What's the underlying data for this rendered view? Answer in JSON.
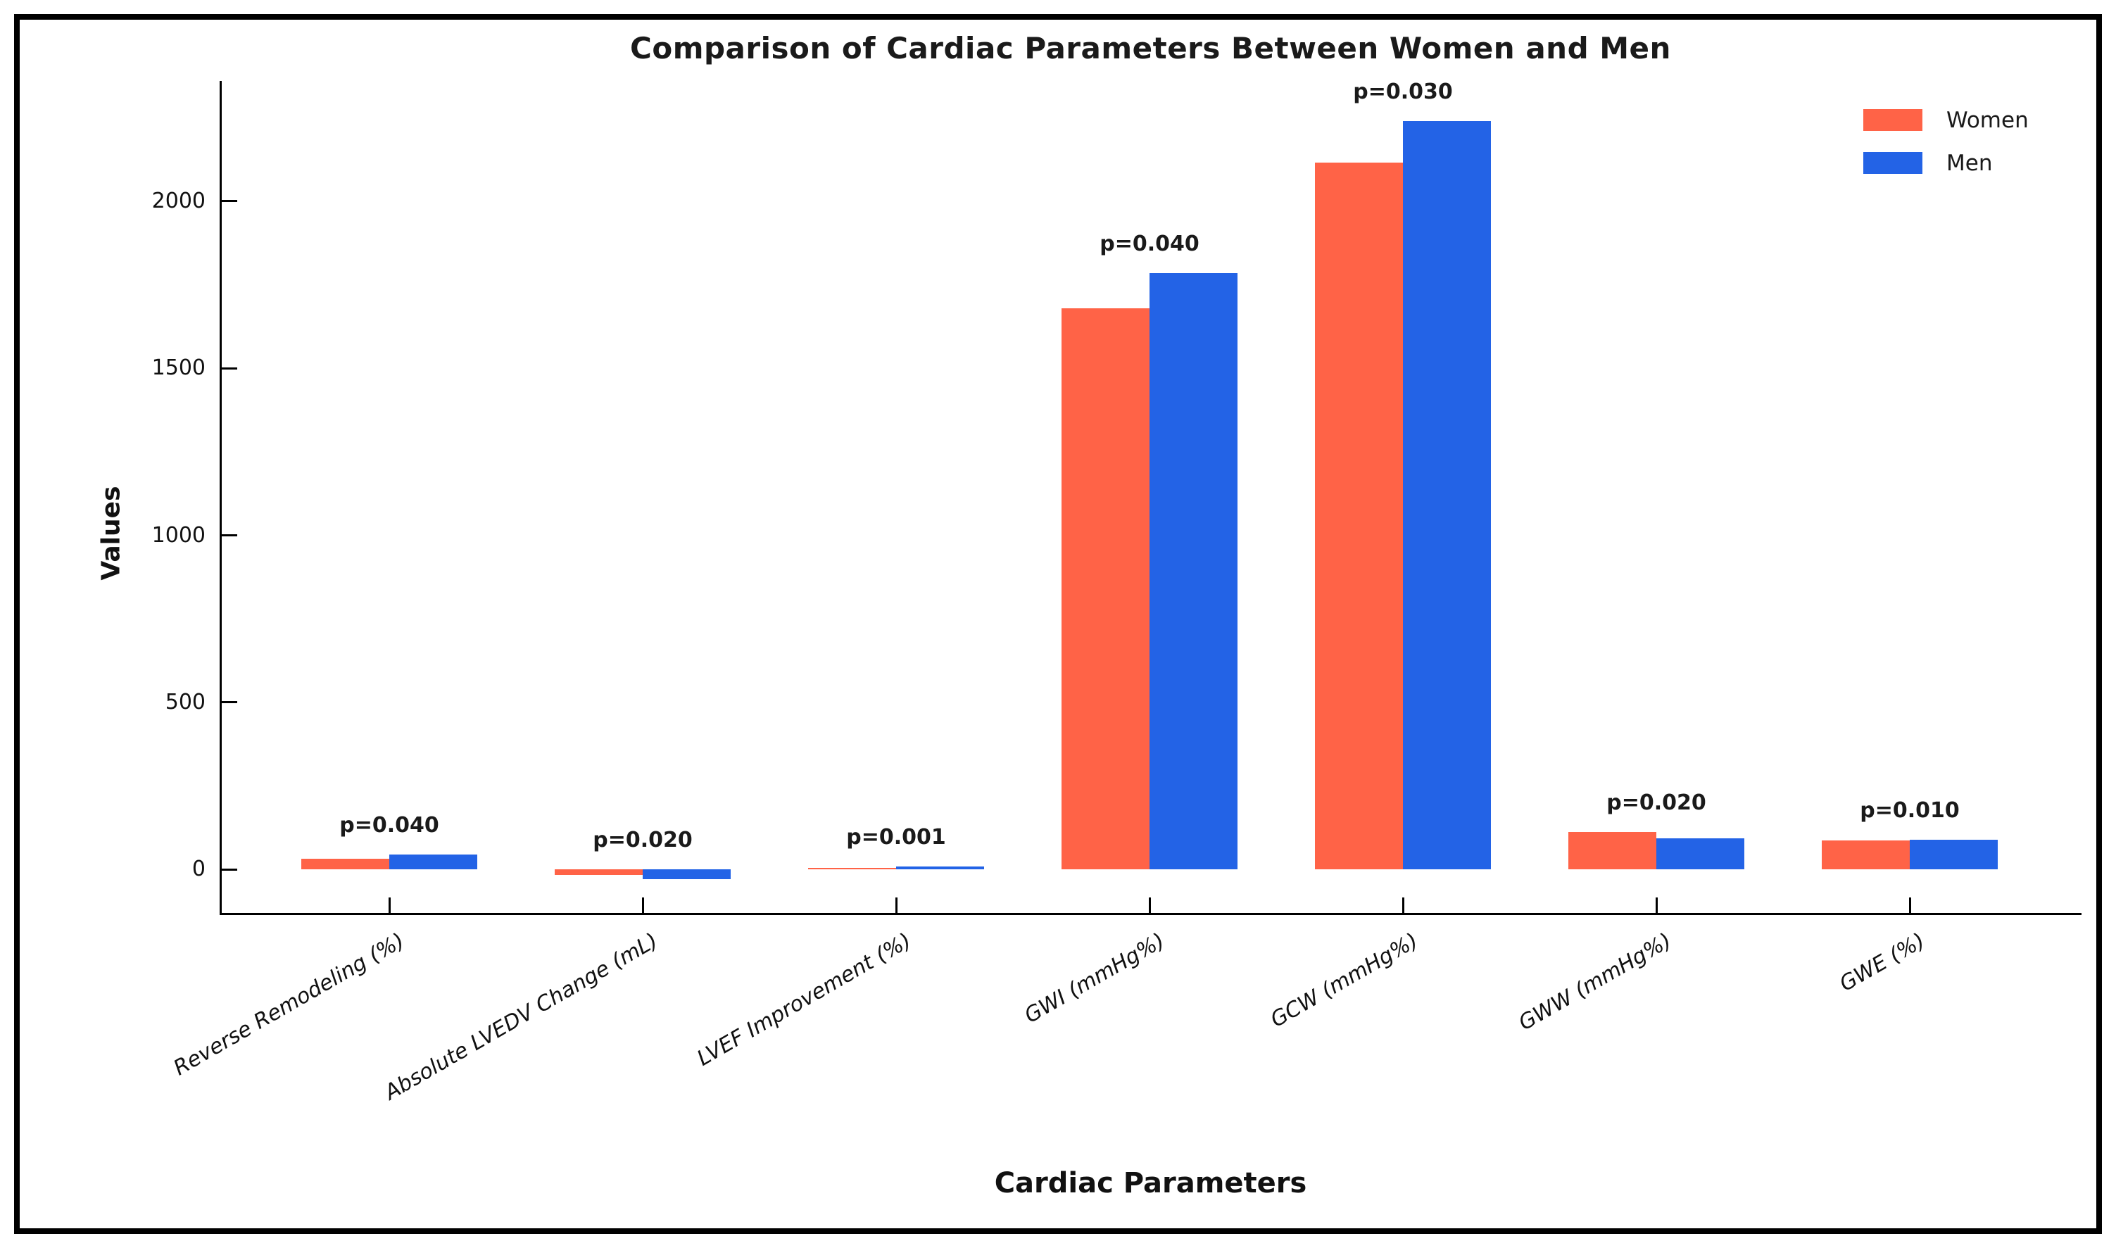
{
  "figure": {
    "background": "#ffffff",
    "frame_color": "#000000"
  },
  "chart_data": {
    "type": "bar",
    "title": "Comparison of Cardiac Parameters Between Women and Men",
    "xlabel": "Cardiac Parameters",
    "ylabel": "Values",
    "categories": [
      "Reverse Remodeling (%)",
      "Absolute LVEDV Change (mL)",
      "LVEF Improvement (%)",
      "GWI (mmHg%)",
      "GCW (mmHg%)",
      "GWW (mmHg%)",
      "GWE (%)"
    ],
    "series": [
      {
        "name": "Women",
        "color": "#FF6347",
        "values": [
          33,
          -16,
          5,
          1680,
          2115,
          112,
          88
        ]
      },
      {
        "name": "Men",
        "color": "#2363E6",
        "values": [
          45,
          -28,
          8,
          1785,
          2240,
          93,
          90
        ]
      }
    ],
    "p_values": [
      "p=0.040",
      "p=0.020",
      "p=0.001",
      "p=0.040",
      "p=0.030",
      "p=0.020",
      "p=0.010"
    ],
    "yticks": [
      0,
      500,
      1000,
      1500,
      2000
    ],
    "ylim": [
      -130,
      2360
    ],
    "grid": false,
    "legend": {
      "position": "upper-right",
      "labels": [
        "Women",
        "Men"
      ]
    }
  }
}
